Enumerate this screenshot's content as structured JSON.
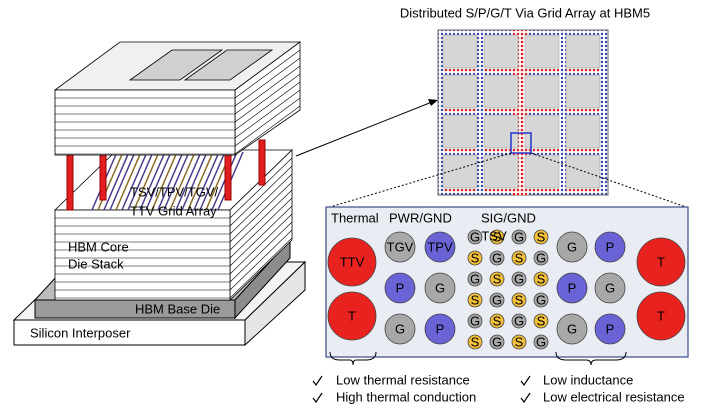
{
  "grid_title": "Distributed S/P/G/T Via Grid Array at HBM5",
  "stack": {
    "via_label_1": "TSV/TPV/TGV/",
    "via_label_2": "TTV Grid Array",
    "core_1": "HBM Core",
    "core_2": "Die Stack",
    "base": "HBM Base Die",
    "interposer": "Silicon Interposer"
  },
  "panel": {
    "headers": [
      "Thermal",
      "PWR/GND",
      "SIG/GND"
    ],
    "tsv_note": "TSV",
    "thermal_left": [
      "TTV",
      "T"
    ],
    "pwr_left": [
      [
        "TGV",
        "TPV"
      ],
      [
        "P",
        "G"
      ],
      [
        "G",
        "P"
      ]
    ],
    "sig": [
      [
        "G",
        "S",
        "G",
        "S"
      ],
      [
        "S",
        "G",
        "S",
        "G"
      ],
      [
        "G",
        "S",
        "G",
        "S"
      ],
      [
        "S",
        "G",
        "S",
        "G"
      ],
      [
        "G",
        "S",
        "G",
        "S"
      ],
      [
        "S",
        "G",
        "S",
        "G"
      ]
    ],
    "pwr_right": [
      [
        "G",
        "P"
      ],
      [
        "P",
        "G"
      ],
      [
        "G",
        "P"
      ]
    ],
    "thermal_right": [
      "T",
      "T"
    ]
  },
  "benefits": [
    "Low thermal resistance",
    "High thermal conduction",
    "Low inductance",
    "Low electrical resistance"
  ]
}
